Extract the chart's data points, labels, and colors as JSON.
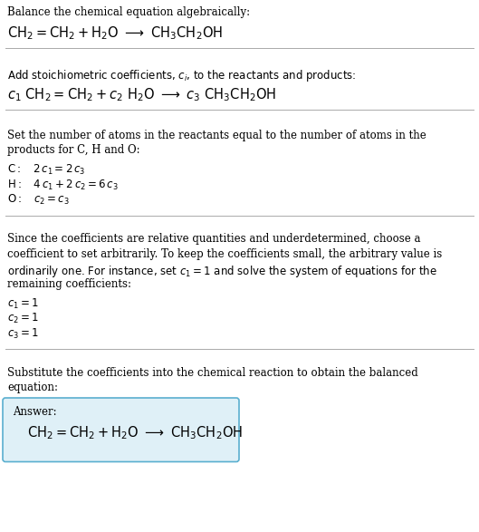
{
  "title": "Balance the chemical equation algebraically:",
  "reaction_line": "$\\mathrm{CH_2{=}CH_2 + H_2O \\ \\longrightarrow \\ CH_3CH_2OH}$",
  "section2_intro": "Add stoichiometric coefficients, $c_i$, to the reactants and products:",
  "section2_reaction": "$c_1\\ \\mathrm{CH_2{=}CH_2} + c_2\\ \\mathrm{H_2O} \\ \\longrightarrow \\ c_3\\ \\mathrm{CH_3CH_2OH}$",
  "section3_intro_1": "Set the number of atoms in the reactants equal to the number of atoms in the",
  "section3_intro_2": "products for C, H and O:",
  "section3_C": "$\\mathrm{C{:}} \\quad 2\\,c_1 = 2\\,c_3$",
  "section3_H": "$\\mathrm{H{:}} \\quad 4\\,c_1 + 2\\,c_2 = 6\\,c_3$",
  "section3_O": "$\\mathrm{O{:}} \\quad c_2 = c_3$",
  "section4_text_1": "Since the coefficients are relative quantities and underdetermined, choose a",
  "section4_text_2": "coefficient to set arbitrarily. To keep the coefficients small, the arbitrary value is",
  "section4_text_3": "ordinarily one. For instance, set $c_1 = 1$ and solve the system of equations for the",
  "section4_text_4": "remaining coefficients:",
  "section4_c1": "$c_1 = 1$",
  "section4_c2": "$c_2 = 1$",
  "section4_c3": "$c_3 = 1$",
  "section5_text_1": "Substitute the coefficients into the chemical reaction to obtain the balanced",
  "section5_text_2": "equation:",
  "answer_label": "Answer:",
  "answer_reaction": "$\\mathrm{CH_2{=}CH_2 + H_2O \\ \\longrightarrow \\ CH_3CH_2OH}$",
  "bg_color": "#ffffff",
  "text_color": "#000000",
  "box_bg_color": "#dff0f7",
  "box_border_color": "#5aafcf",
  "separator_color": "#aaaaaa",
  "font_size_body": 8.5,
  "font_size_chem": 10.5
}
